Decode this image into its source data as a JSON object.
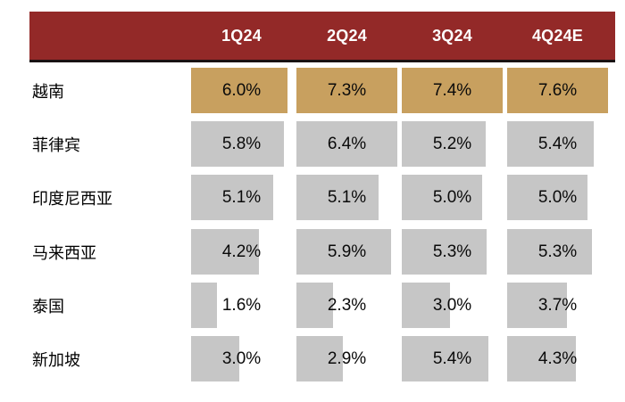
{
  "table": {
    "columns": [
      "1Q24",
      "2Q24",
      "3Q24",
      "4Q24E"
    ],
    "rows": [
      {
        "label": "越南",
        "values": [
          "6.0%",
          "7.3%",
          "7.4%",
          "7.6%"
        ],
        "highlight": true
      },
      {
        "label": "菲律宾",
        "values": [
          "5.8%",
          "6.4%",
          "5.2%",
          "5.4%"
        ],
        "highlight": false
      },
      {
        "label": "印度尼西亚",
        "values": [
          "5.1%",
          "5.1%",
          "5.0%",
          "5.0%"
        ],
        "highlight": false
      },
      {
        "label": "马来西亚",
        "values": [
          "4.2%",
          "5.9%",
          "5.3%",
          "5.3%"
        ],
        "highlight": false
      },
      {
        "label": "泰国",
        "values": [
          "1.6%",
          "2.3%",
          "3.0%",
          "3.7%"
        ],
        "highlight": false
      },
      {
        "label": "新加坡",
        "values": [
          "3.0%",
          "2.9%",
          "5.4%",
          "4.3%"
        ],
        "highlight": false
      }
    ]
  },
  "colors": {
    "header_bg": "#932928",
    "header_underline": "#191213",
    "header_text": "#ffffff",
    "highlight_bar": "#c8a05f",
    "default_bar": "#c6c6c6",
    "value_text": "#0a0a0a"
  },
  "chart_data": {
    "type": "table",
    "title": "",
    "categories": [
      "1Q24",
      "2Q24",
      "3Q24",
      "4Q24E"
    ],
    "series": [
      {
        "name": "越南",
        "values": [
          6.0,
          7.3,
          7.4,
          7.6
        ]
      },
      {
        "name": "菲律宾",
        "values": [
          5.8,
          6.4,
          5.2,
          5.4
        ]
      },
      {
        "name": "印度尼西亚",
        "values": [
          5.1,
          5.1,
          5.0,
          5.0
        ]
      },
      {
        "name": "马来西亚",
        "values": [
          4.2,
          5.9,
          5.3,
          5.3
        ]
      },
      {
        "name": "泰国",
        "values": [
          1.6,
          2.3,
          3.0,
          3.7
        ]
      },
      {
        "name": "新加坡",
        "values": [
          3.0,
          2.9,
          5.4,
          4.3
        ]
      }
    ],
    "value_unit": "%",
    "layout_hints": {
      "cell_bars": "in-cell data bars, length proportional to value, capped at cell width",
      "highlight_row": "越南",
      "legend": "none",
      "grid": "off"
    }
  }
}
